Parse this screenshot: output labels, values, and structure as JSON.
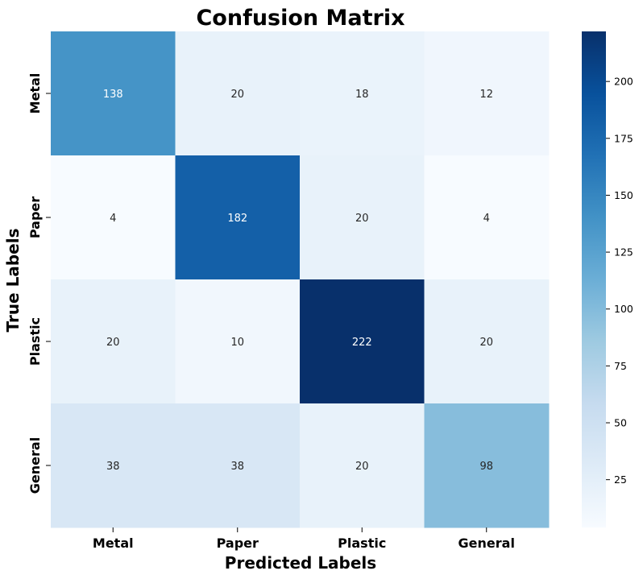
{
  "chart_data": {
    "type": "heatmap",
    "title": "Confusion Matrix",
    "xlabel": "Predicted Labels",
    "ylabel": "True Labels",
    "x_categories": [
      "Metal",
      "Paper",
      "Plastic",
      "General"
    ],
    "y_categories": [
      "Metal",
      "Paper",
      "Plastic",
      "General"
    ],
    "values": [
      [
        138,
        20,
        18,
        12
      ],
      [
        4,
        182,
        20,
        4
      ],
      [
        20,
        10,
        222,
        20
      ],
      [
        38,
        38,
        20,
        98
      ]
    ],
    "colormap": "Blues",
    "color_range": [
      4,
      222
    ],
    "colorbar_ticks": [
      25,
      50,
      75,
      100,
      125,
      150,
      175,
      200
    ],
    "grid": false
  }
}
